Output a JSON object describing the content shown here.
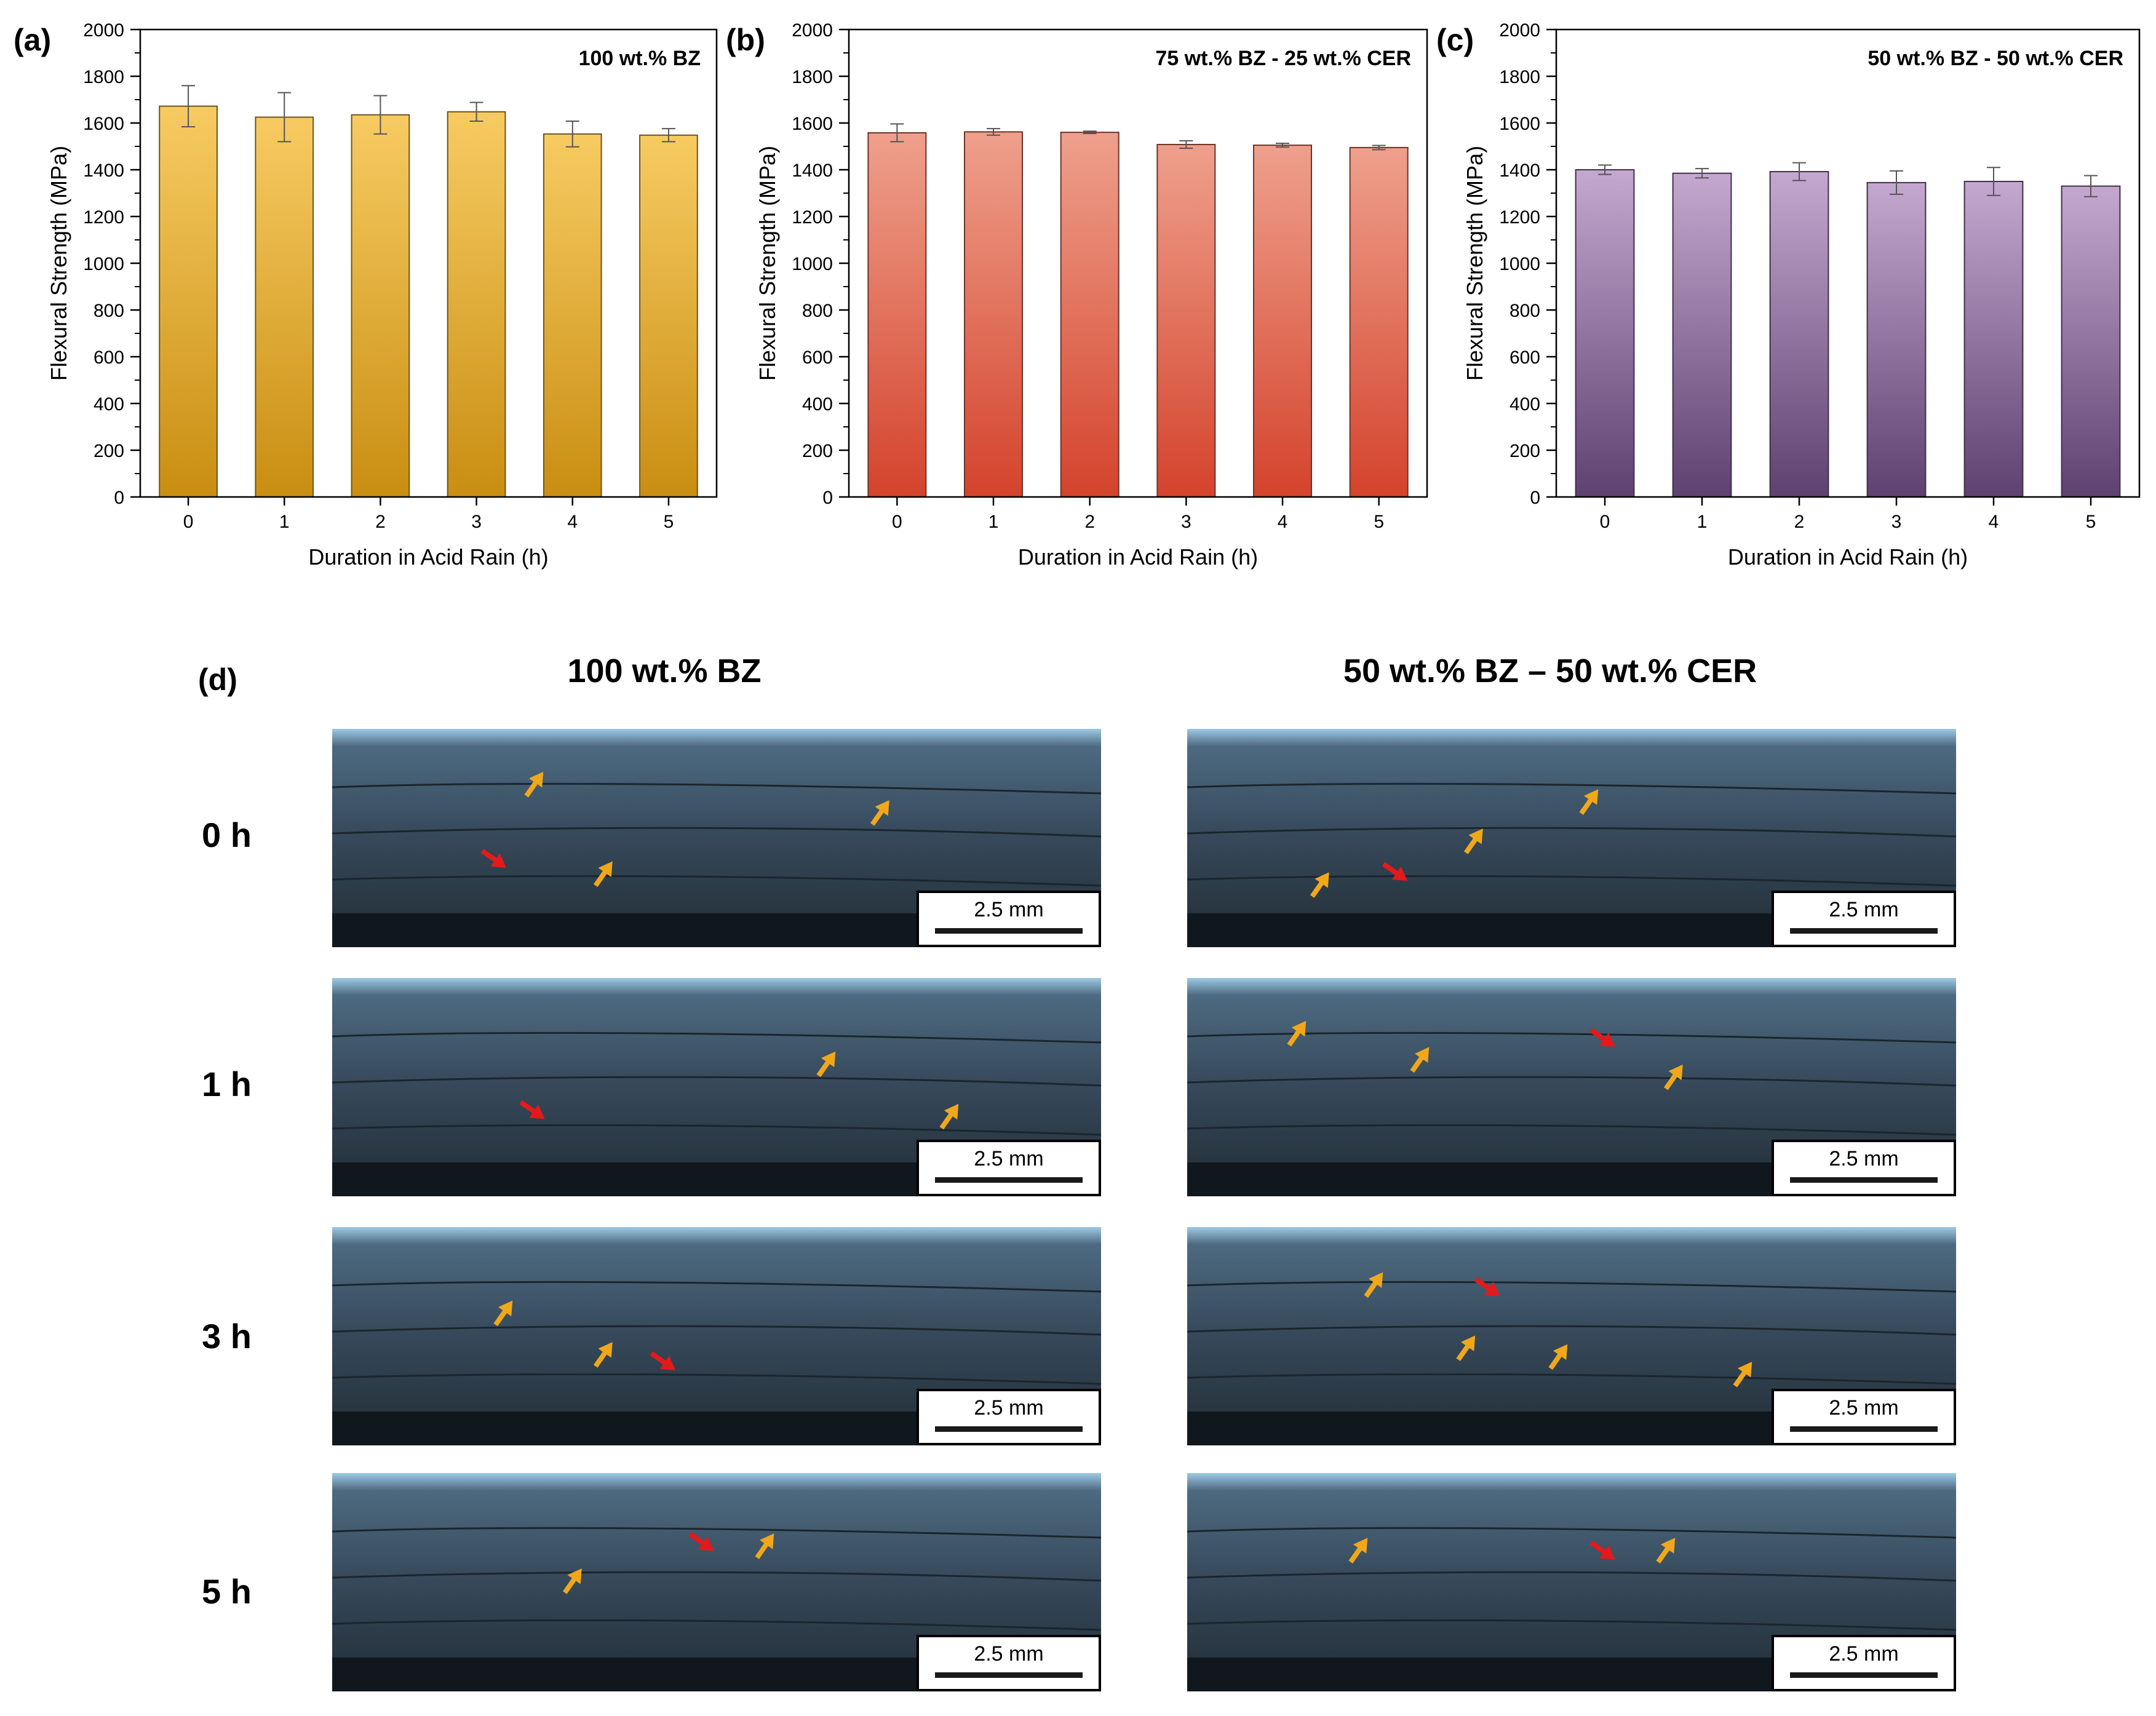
{
  "chart_data": [
    {
      "type": "bar",
      "panel": "(a)",
      "title": "100 wt.% BZ",
      "xlabel": "Duration in Acid Rain (h)",
      "ylabel": "Flexural Strength (MPa)",
      "categories": [
        "0",
        "1",
        "2",
        "3",
        "4",
        "5"
      ],
      "values": [
        1672,
        1625,
        1635,
        1648,
        1553,
        1548
      ],
      "errors": [
        88,
        105,
        82,
        40,
        55,
        28
      ],
      "ylim": [
        0,
        2000
      ],
      "yticks": [
        "0",
        "200",
        "400",
        "600",
        "800",
        "1000",
        "1200",
        "1400",
        "1600",
        "1800",
        "2000"
      ],
      "colors": {
        "top": "#f7cb62",
        "bottom": "#c98e12",
        "edge": "#6b5520"
      }
    },
    {
      "type": "bar",
      "panel": "(b)",
      "title": "75 wt.% BZ - 25 wt.% CER",
      "xlabel": "Duration in Acid Rain (h)",
      "ylabel": "Flexural Strength (MPa)",
      "categories": [
        "0",
        "1",
        "2",
        "3",
        "4",
        "5"
      ],
      "values": [
        1558,
        1562,
        1560,
        1508,
        1505,
        1495
      ],
      "errors": [
        38,
        14,
        5,
        16,
        8,
        9
      ],
      "ylim": [
        0,
        2000
      ],
      "yticks": [
        "0",
        "200",
        "400",
        "600",
        "800",
        "1000",
        "1200",
        "1400",
        "1600",
        "1800",
        "2000"
      ],
      "colors": {
        "top": "#eea08c",
        "bottom": "#d4432c",
        "edge": "#6e3227"
      }
    },
    {
      "type": "bar",
      "panel": "(c)",
      "title": "50 wt.% BZ - 50 wt.% CER",
      "xlabel": "Duration in Acid Rain (h)",
      "ylabel": "Flexural Strength (MPa)",
      "categories": [
        "0",
        "1",
        "2",
        "3",
        "4",
        "5"
      ],
      "values": [
        1400,
        1385,
        1392,
        1345,
        1350,
        1330
      ],
      "errors": [
        20,
        20,
        38,
        50,
        60,
        45
      ],
      "ylim": [
        0,
        2000
      ],
      "yticks": [
        "0",
        "200",
        "400",
        "600",
        "800",
        "1000",
        "1200",
        "1400",
        "1600",
        "1800",
        "2000"
      ],
      "colors": {
        "top": "#c4a8cf",
        "bottom": "#5e4170",
        "edge": "#40304a"
      }
    }
  ],
  "micrographs": {
    "panel": "(d)",
    "columns": [
      "100 wt.% BZ",
      "50 wt.% BZ – 50 wt.% CER"
    ],
    "rows": [
      "0 h",
      "1 h",
      "3 h",
      "5 h"
    ],
    "scale_label": "2.5 mm",
    "legend_colors": {
      "crack_arrow": "#f0a81a",
      "fracture_arrow": "#e31a1c"
    }
  }
}
